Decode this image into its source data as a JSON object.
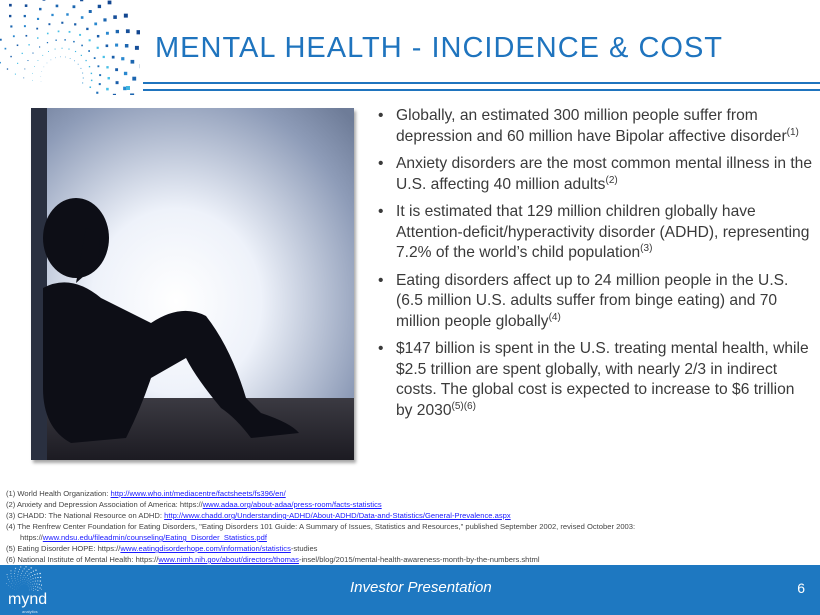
{
  "slide": {
    "title": "MENTAL HEALTH - INCIDENCE & COST",
    "accent_color": "#1f74be",
    "image": "silhouette of woman sitting against wall"
  },
  "bullets": [
    {
      "text": "Globally, an estimated 300 million people suffer from depression and 60 million have Bipolar affective disorder",
      "ref": "(1)"
    },
    {
      "text": "Anxiety disorders are the most common mental illness in the U.S. affecting 40 million adults",
      "ref": "(2)"
    },
    {
      "text": "It is estimated that 129 million children globally have Attention-deficit/hyperactivity disorder (ADHD), representing 7.2% of the world’s child population",
      "ref": "(3)"
    },
    {
      "text": "Eating disorders affect up to 24 million people in the U.S. (6.5 million U.S. adults suffer from binge eating) and 70 million people globally",
      "ref": "(4)"
    },
    {
      "text": "$147 billion is spent in the U.S. treating mental health, while $2.5 trillion are spent globally, with nearly 2/3 in indirect costs.  The global cost is expected to increase to $6 trillion by 2030",
      "ref": "(5)(6)"
    }
  ],
  "footnotes": [
    {
      "pre": "(1)  World Health Organization: ",
      "link": "http://www.who.int/mediacentre/factsheets/fs396/en/",
      "post": ""
    },
    {
      "pre": "(2)  Anxiety and Depression Association of America: https://",
      "link": "www.adaa.org/about-adaa/press-room/facts-statistics",
      "post": ""
    },
    {
      "pre": "(3)  CHADD: The National Resource on ADHD:  ",
      "link": "http://www.chadd.org/Understanding-ADHD/About-ADHD/Data-and-Statistics/General-Prevalence.aspx",
      "post": ""
    },
    {
      "pre": "(4)  The Renfrew Center Foundation for Eating Disorders, \"Eating Disorders 101 Guide: A Summary of Issues, Statistics and Resources,\" published September 2002, revised October 2003:",
      "link": "",
      "post": ""
    },
    {
      "pre": "https://",
      "link": "www.ndsu.edu/fileadmin/counseling/Eating_Disorder_Statistics.pdf",
      "post": ""
    },
    {
      "pre": "(5)  Eating Disorder HOPE:  https://",
      "link": "www.eatingdisorderhope.com/information/statistics",
      "post": "-studies"
    },
    {
      "pre": "(6)  National Institute of Mental Health: https://",
      "link": "www.nimh.nih.gov/about/directors/thomas",
      "post": "-insel/blog/2015/mental-health-awareness-month-by-the-numbers.shtml"
    }
  ],
  "footer": {
    "label": "Investor Presentation",
    "page": "6",
    "logo_text": "mynd",
    "logo_subtext": "analytics",
    "color": "#1e78c1"
  }
}
